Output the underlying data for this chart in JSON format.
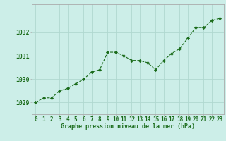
{
  "x": [
    0,
    1,
    2,
    3,
    4,
    5,
    6,
    7,
    8,
    9,
    10,
    11,
    12,
    13,
    14,
    15,
    16,
    17,
    18,
    19,
    20,
    21,
    22,
    23
  ],
  "y": [
    1029.0,
    1029.2,
    1029.2,
    1029.5,
    1029.6,
    1029.8,
    1030.0,
    1030.3,
    1030.4,
    1031.15,
    1031.15,
    1031.0,
    1030.8,
    1030.8,
    1030.7,
    1030.4,
    1030.8,
    1031.1,
    1031.3,
    1031.75,
    1032.2,
    1032.2,
    1032.5,
    1032.6
  ],
  "line_color": "#1a6b1a",
  "marker": "D",
  "marker_size": 2.2,
  "bg_color": "#cceee8",
  "grid_color": "#b0d8d0",
  "border_color": "#aaaaaa",
  "xlabel": "Graphe pression niveau de la mer (hPa)",
  "xlabel_fontsize": 6.0,
  "ylabel_ticks": [
    1029,
    1030,
    1031,
    1032
  ],
  "xtick_labels": [
    "0",
    "1",
    "2",
    "3",
    "4",
    "5",
    "6",
    "7",
    "8",
    "9",
    "10",
    "11",
    "12",
    "13",
    "14",
    "15",
    "16",
    "17",
    "18",
    "19",
    "20",
    "21",
    "22",
    "23"
  ],
  "ylim": [
    1028.5,
    1033.2
  ],
  "xlim": [
    -0.5,
    23.5
  ],
  "tick_color": "#1a6b1a",
  "tick_fontsize": 5.5,
  "ytick_fontsize": 5.8
}
